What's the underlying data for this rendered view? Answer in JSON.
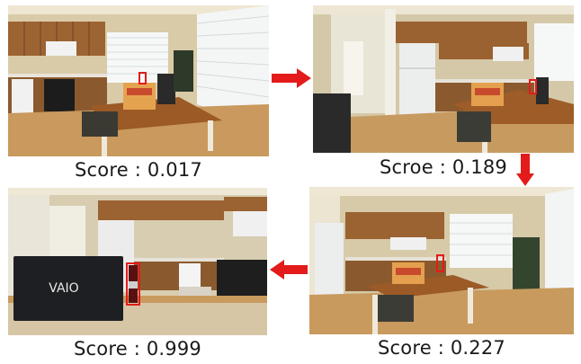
{
  "colors": {
    "arrow": "#e31b1b",
    "bbox": "#e31b1b"
  },
  "panels": [
    {
      "score_text": "Score : 0.017",
      "score_value": 0.017
    },
    {
      "score_text": "Scroe : 0.189",
      "score_value": 0.189
    },
    {
      "score_text": "Score : 0.227",
      "score_value": 0.227
    },
    {
      "score_text": "Score : 0.999",
      "score_value": 0.999
    }
  ],
  "laptop_logo": "VAIO"
}
